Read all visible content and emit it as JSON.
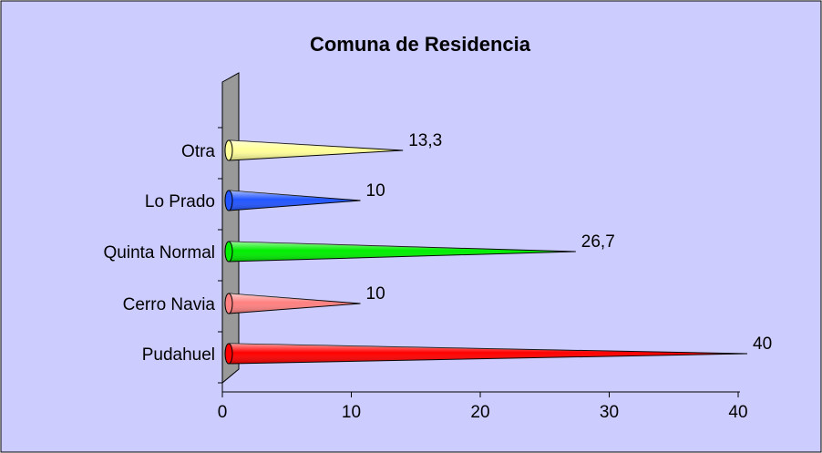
{
  "chart_data": {
    "type": "bar",
    "orientation": "horizontal",
    "title": "Comuna de Residencia",
    "categories": [
      "Pudahuel",
      "Cerro Navia",
      "Quinta Normal",
      "Lo Prado",
      "Otra"
    ],
    "values": [
      40,
      10,
      26.7,
      10,
      13.3
    ],
    "value_labels": [
      "40",
      "10",
      "26,7",
      "10",
      "13,3"
    ],
    "colors": [
      "#ff0000",
      "#ff8080",
      "#00ee00",
      "#2255ff",
      "#ffff99"
    ],
    "xlim": [
      0,
      40
    ],
    "xticks": [
      0,
      10,
      20,
      30,
      40
    ]
  }
}
